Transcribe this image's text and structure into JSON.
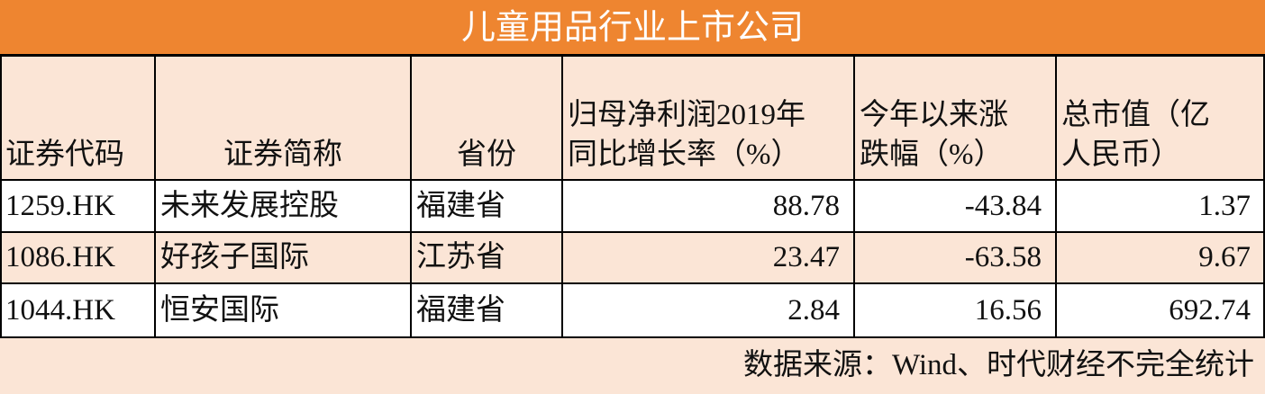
{
  "table": {
    "title": "儿童用品行业上市公司",
    "header": [
      [
        "证券代码"
      ],
      [
        "证券简称"
      ],
      [
        "省份"
      ],
      [
        "归母净利润2019年",
        "同比增长率（%）"
      ],
      [
        "今年以来涨",
        "跌幅（%）"
      ],
      [
        "总市值（亿",
        "人民币）"
      ]
    ],
    "rows": [
      [
        "1259.HK",
        "未来发展控股",
        "福建省",
        "88.78",
        "-43.84",
        "1.37"
      ],
      [
        "1086.HK",
        "好孩子国际",
        "江苏省",
        "23.47",
        "-63.58",
        "9.67"
      ],
      [
        "1044.HK",
        "恒安国际",
        "福建省",
        "2.84",
        "16.56",
        "692.74"
      ]
    ],
    "source": "数据来源：Wind、时代财经不完全统计"
  }
}
